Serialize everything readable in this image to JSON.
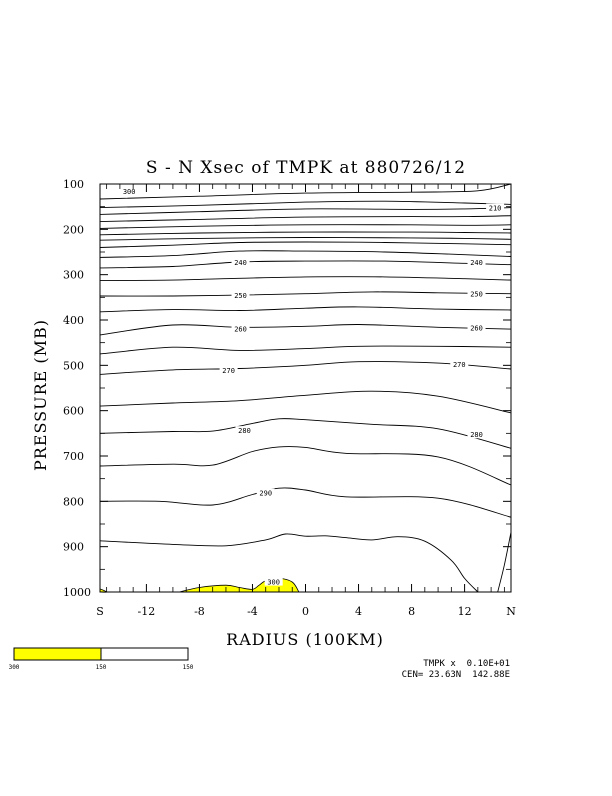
{
  "chart_data": {
    "type": "contour",
    "title": "S - N Xsec of TMPK at 880726/12",
    "xlabel": "RADIUS (100KM)",
    "ylabel": "PRESSURE (MB)",
    "x_ticks": [
      "S",
      "-12",
      "-8",
      "-4",
      "0",
      "4",
      "8",
      "12",
      "N"
    ],
    "x_tick_values": [
      -15.5,
      -12,
      -8,
      -4,
      0,
      4,
      8,
      12,
      15.5
    ],
    "xlim": [
      -15.5,
      15.5
    ],
    "y_ticks": [
      "100",
      "200",
      "300",
      "400",
      "500",
      "600",
      "700",
      "800",
      "900",
      "1000"
    ],
    "y_tick_values": [
      100,
      200,
      300,
      400,
      500,
      600,
      700,
      800,
      900,
      1000
    ],
    "ylim": [
      1000,
      100
    ],
    "contour_interval": 5,
    "contour_labels": [
      {
        "text": "300",
        "x": -13.3,
        "p": 115
      },
      {
        "text": "210",
        "x": 14.3,
        "p": 152
      },
      {
        "text": "240",
        "x": -4.9,
        "p": 272
      },
      {
        "text": "240",
        "x": 12.9,
        "p": 272
      },
      {
        "text": "250",
        "x": -4.9,
        "p": 345
      },
      {
        "text": "250",
        "x": 12.9,
        "p": 342
      },
      {
        "text": "260",
        "x": -4.9,
        "p": 419
      },
      {
        "text": "260",
        "x": 12.9,
        "p": 417
      },
      {
        "text": "270",
        "x": -5.8,
        "p": 510
      },
      {
        "text": "270",
        "x": 11.6,
        "p": 497
      },
      {
        "text": "280",
        "x": -4.6,
        "p": 643
      },
      {
        "text": "280",
        "x": 12.9,
        "p": 652
      },
      {
        "text": "290",
        "x": -3.0,
        "p": 781
      },
      {
        "text": "300",
        "x": -2.4,
        "p": 977
      }
    ],
    "isotherms": [
      {
        "x": [
          -15.5,
          -8,
          0,
          8,
          13,
          15.5
        ],
        "p": [
          133,
          127,
          120,
          118,
          115,
          100
        ]
      },
      {
        "x": [
          -15.5,
          -8,
          0,
          6,
          12,
          15.5
        ],
        "p": [
          152,
          147,
          140,
          138,
          142,
          145
        ]
      },
      {
        "x": [
          -15.5,
          -8,
          0,
          8,
          12,
          15.5
        ],
        "p": [
          167,
          161,
          155,
          156,
          155,
          152
        ]
      },
      {
        "x": [
          -15.5,
          -8,
          0,
          8,
          12,
          15.5
        ],
        "p": [
          183,
          178,
          173,
          172,
          172,
          170
        ]
      },
      {
        "x": [
          -15.5,
          -8,
          0,
          8,
          12,
          15.5
        ],
        "p": [
          198,
          193,
          190,
          190,
          191,
          190
        ]
      },
      {
        "x": [
          -15.5,
          -8,
          0,
          8,
          12,
          15.5
        ],
        "p": [
          212,
          208,
          206,
          206,
          207,
          208
        ]
      },
      {
        "x": [
          -15.5,
          -8,
          0,
          8,
          12,
          15.5
        ],
        "p": [
          224,
          220,
          218,
          219,
          220,
          222
        ]
      },
      {
        "x": [
          -15.5,
          -10,
          -5,
          0,
          6,
          12,
          15.5
        ],
        "p": [
          240,
          235,
          229,
          228,
          229,
          232,
          234
        ]
      },
      {
        "x": [
          -15.5,
          -10,
          -5,
          0,
          6,
          12,
          15.5
        ],
        "p": [
          262,
          258,
          248,
          248,
          250,
          256,
          260
        ]
      },
      {
        "x": [
          -15.5,
          -10,
          -5,
          0,
          6,
          12,
          15.5
        ],
        "p": [
          285,
          282,
          272,
          270,
          270,
          275,
          278
        ]
      },
      {
        "x": [
          -15.5,
          -10,
          -5,
          0,
          6,
          12,
          15.5
        ],
        "p": [
          313,
          312,
          308,
          305,
          305,
          309,
          312
        ]
      },
      {
        "x": [
          -15.5,
          -10,
          -5,
          0,
          5,
          10,
          15.5
        ],
        "p": [
          347,
          347,
          345,
          342,
          338,
          340,
          342
        ]
      },
      {
        "x": [
          -15.5,
          -10,
          -5,
          0,
          4,
          10,
          15.5
        ],
        "p": [
          382,
          377,
          379,
          374,
          371,
          376,
          378
        ]
      },
      {
        "x": [
          -15.5,
          -10,
          -5,
          0,
          4,
          10,
          15.5
        ],
        "p": [
          433,
          411,
          416,
          414,
          410,
          416,
          420
        ]
      },
      {
        "x": [
          -15.5,
          -10,
          -5,
          0,
          4,
          10,
          15.5
        ],
        "p": [
          475,
          460,
          467,
          463,
          458,
          458,
          460
        ]
      },
      {
        "x": [
          -15.5,
          -10,
          -5,
          0,
          4,
          10,
          15.5
        ],
        "p": [
          520,
          510,
          507,
          500,
          492,
          495,
          508
        ]
      },
      {
        "x": [
          -15.5,
          -10,
          -5,
          0,
          5,
          10,
          15.5
        ],
        "p": [
          590,
          583,
          578,
          566,
          557,
          568,
          605
        ]
      },
      {
        "x": [
          -15.5,
          -10,
          -7,
          -4,
          -2,
          0,
          5,
          10,
          15.5
        ],
        "p": [
          650,
          646,
          645,
          628,
          618,
          620,
          630,
          640,
          683
        ]
      },
      {
        "x": [
          -15.5,
          -10,
          -7,
          -4,
          -2,
          0,
          3,
          10,
          15.5
        ],
        "p": [
          722,
          718,
          720,
          690,
          680,
          681,
          694,
          702,
          764
        ]
      },
      {
        "x": [
          -15.5,
          -11,
          -7,
          -4,
          -2,
          0,
          3,
          10,
          15.5
        ],
        "p": [
          800,
          800,
          808,
          785,
          771,
          775,
          790,
          793,
          835
        ]
      },
      {
        "x": [
          -15.5,
          -10,
          -6,
          -3,
          -1.5,
          0,
          1.5,
          3,
          5,
          7,
          9,
          11,
          12,
          13
        ],
        "p": [
          887,
          895,
          898,
          885,
          872,
          877,
          876,
          880,
          885,
          878,
          888,
          930,
          970,
          1000
        ]
      },
      {
        "x": [
          14.5,
          15,
          15.5
        ],
        "p": [
          1000,
          940,
          868
        ]
      }
    ],
    "shaded_region_300K": [
      {
        "x": [
          -15.5,
          -15,
          -15.5
        ],
        "p": [
          993,
          1000,
          1000
        ]
      },
      {
        "x": [
          -9.5,
          -8,
          -6,
          -5,
          -4,
          -3.5,
          -3,
          -2,
          -1,
          -0.5
        ],
        "p": [
          1000,
          990,
          985,
          990,
          994,
          985,
          975,
          970,
          978,
          1000
        ]
      }
    ],
    "fill_color": "#ffff00",
    "colorbar": {
      "labels": [
        "300",
        "150",
        "150"
      ],
      "fill_fraction": 0.5,
      "color": "#ffff00"
    },
    "footer": {
      "line1": "TMPK x  0.10E+01",
      "line2": "CEN= 23.63N  142.88E"
    }
  }
}
